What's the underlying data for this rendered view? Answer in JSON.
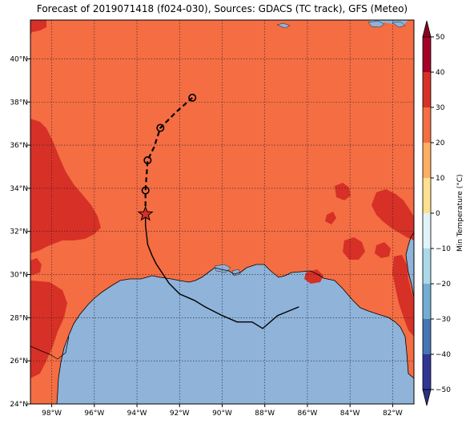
{
  "title": "Forecast of 2019071418 (f024-030), Sources: GDACS (TC track), GFS (Meteo)",
  "map": {
    "lon_range": [
      -99.0,
      -81.0
    ],
    "lat_range": [
      24.0,
      41.8
    ],
    "x_ticks": [
      {
        "value": -98,
        "label": "98°W"
      },
      {
        "value": -96,
        "label": "96°W"
      },
      {
        "value": -94,
        "label": "94°W"
      },
      {
        "value": -92,
        "label": "92°W"
      },
      {
        "value": -90,
        "label": "90°W"
      },
      {
        "value": -88,
        "label": "88°W"
      },
      {
        "value": -86,
        "label": "86°W"
      },
      {
        "value": -84,
        "label": "84°W"
      },
      {
        "value": -82,
        "label": "82°W"
      }
    ],
    "y_ticks": [
      {
        "value": 24,
        "label": "24°N"
      },
      {
        "value": 26,
        "label": "26°N"
      },
      {
        "value": 28,
        "label": "28°N"
      },
      {
        "value": 30,
        "label": "30°N"
      },
      {
        "value": 32,
        "label": "32°N"
      },
      {
        "value": 34,
        "label": "34°N"
      },
      {
        "value": 36,
        "label": "36°N"
      },
      {
        "value": 38,
        "label": "38°N"
      },
      {
        "value": 40,
        "label": "40°N"
      }
    ],
    "grid": true,
    "colors": {
      "ocean": "#8fb3d9",
      "land_20_30": "#f46d43",
      "land_30_40": "#d73027"
    },
    "observed_track": [
      [
        -86.4,
        28.5
      ],
      [
        -87.4,
        28.1
      ],
      [
        -88.1,
        27.5
      ],
      [
        -88.6,
        27.8
      ],
      [
        -89.3,
        27.8
      ],
      [
        -90.0,
        28.1
      ],
      [
        -90.8,
        28.5
      ],
      [
        -91.3,
        28.8
      ],
      [
        -92.0,
        29.1
      ],
      [
        -92.5,
        29.6
      ],
      [
        -93.1,
        30.5
      ],
      [
        -93.3,
        30.9
      ],
      [
        -93.5,
        31.4
      ],
      [
        -93.6,
        32.3
      ],
      [
        -93.6,
        32.8
      ]
    ],
    "current_position": [
      -93.6,
      32.8
    ],
    "forecast_track": [
      [
        -93.6,
        32.8
      ],
      [
        -93.6,
        33.9
      ],
      [
        -93.5,
        35.3
      ],
      [
        -93.2,
        35.9
      ],
      [
        -92.9,
        36.8
      ],
      [
        -92.2,
        37.5
      ],
      [
        -91.4,
        38.2
      ]
    ],
    "forecast_points": [
      [
        -93.6,
        33.9
      ],
      [
        -93.5,
        35.3
      ],
      [
        -92.9,
        36.8
      ],
      [
        -91.4,
        38.2
      ]
    ]
  },
  "colorbar": {
    "label": "Min Temperature (°C)",
    "min": -50,
    "max": 50,
    "ticks": [
      50,
      40,
      30,
      20,
      10,
      0,
      -10,
      -20,
      -30,
      -40,
      -50
    ],
    "tick_labels": [
      "50",
      "40",
      "30",
      "20",
      "10",
      "0",
      "−10",
      "−20",
      "−30",
      "−40",
      "−50"
    ],
    "bands": [
      {
        "from": 40,
        "to": 50,
        "color": "#a50026"
      },
      {
        "from": 30,
        "to": 40,
        "color": "#d73027"
      },
      {
        "from": 20,
        "to": 30,
        "color": "#f46d43"
      },
      {
        "from": 10,
        "to": 20,
        "color": "#fdae61"
      },
      {
        "from": 0,
        "to": 10,
        "color": "#fee090"
      },
      {
        "from": -10,
        "to": 0,
        "color": "#e0f3f8"
      },
      {
        "from": -20,
        "to": -10,
        "color": "#abd9e9"
      },
      {
        "from": -30,
        "to": -20,
        "color": "#74add1"
      },
      {
        "from": -40,
        "to": -30,
        "color": "#4575b4"
      },
      {
        "from": -50,
        "to": -40,
        "color": "#313695"
      }
    ],
    "over_color": "#8b0020",
    "under_color": "#2a2f82"
  }
}
